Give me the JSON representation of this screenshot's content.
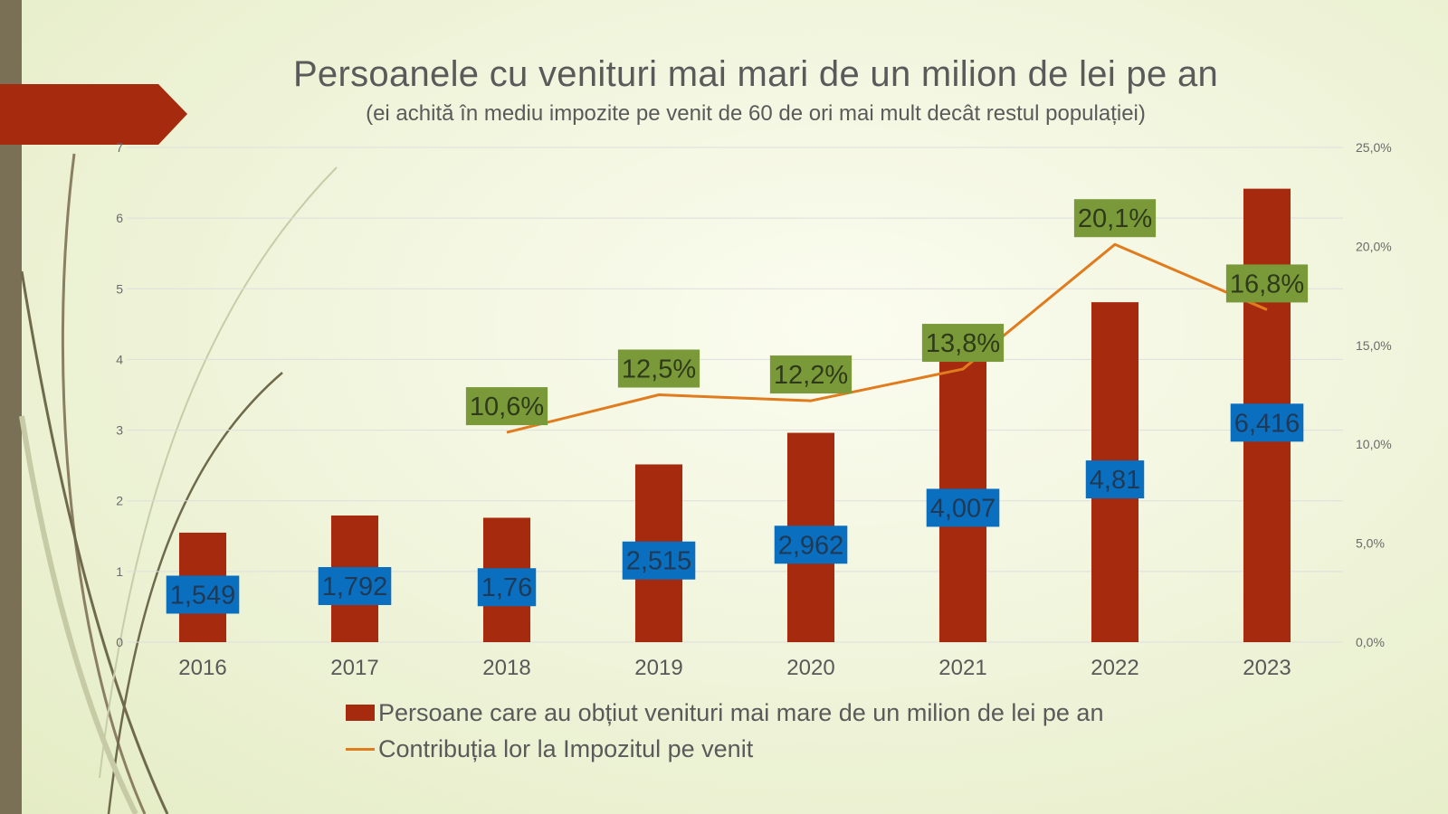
{
  "slide": {
    "title": "Persoanele cu venituri mai mari de un milion de lei pe an",
    "subtitle": "(ei achită în mediu impozite pe venit de 60 de ori mai mult decât restul populației)"
  },
  "colors": {
    "bar": "#a52a0e",
    "line": "#e07b1e",
    "bar_label_bg": "#0b6fc0",
    "bar_label_text": "#1f3a56",
    "line_label_bg": "#7a9a3a",
    "line_label_text": "#2e3a1a",
    "axis_text": "#6b6b6b",
    "grid": "#dedede",
    "deco_bar": "#7a7055",
    "deco_arrow": "#a52a0e"
  },
  "chart_data": {
    "type": "bar",
    "categories": [
      "2016",
      "2017",
      "2018",
      "2019",
      "2020",
      "2021",
      "2022",
      "2023"
    ],
    "series": [
      {
        "name": "Persoane care au obțiut venituri mai mare de un milion de lei pe an",
        "type": "bar",
        "axis": "left",
        "values": [
          1.549,
          1.792,
          1.76,
          2.515,
          2.962,
          4.007,
          4.81,
          6.416
        ],
        "labels": [
          "1,549",
          "1,792",
          "1,76",
          "2,515",
          "2,962",
          "4,007",
          "4,81",
          "6,416"
        ]
      },
      {
        "name": "Contribuția lor la Impozitul pe venit",
        "type": "line",
        "axis": "right",
        "values": [
          null,
          null,
          10.6,
          12.5,
          12.2,
          13.8,
          20.1,
          16.8
        ],
        "labels": [
          null,
          null,
          "10,6%",
          "12,5%",
          "12,2%",
          "13,8%",
          "20,1%",
          "16,8%"
        ]
      }
    ],
    "y_left": {
      "ylim": [
        0,
        7
      ],
      "ticks": [
        "0",
        "1",
        "2",
        "3",
        "4",
        "5",
        "6",
        "7"
      ]
    },
    "y_right": {
      "ylim": [
        0,
        25
      ],
      "ticks": [
        "0,0%",
        "5,0%",
        "10,0%",
        "15,0%",
        "20,0%",
        "25,0%"
      ]
    },
    "grid": true,
    "legend_position": "bottom-left"
  }
}
